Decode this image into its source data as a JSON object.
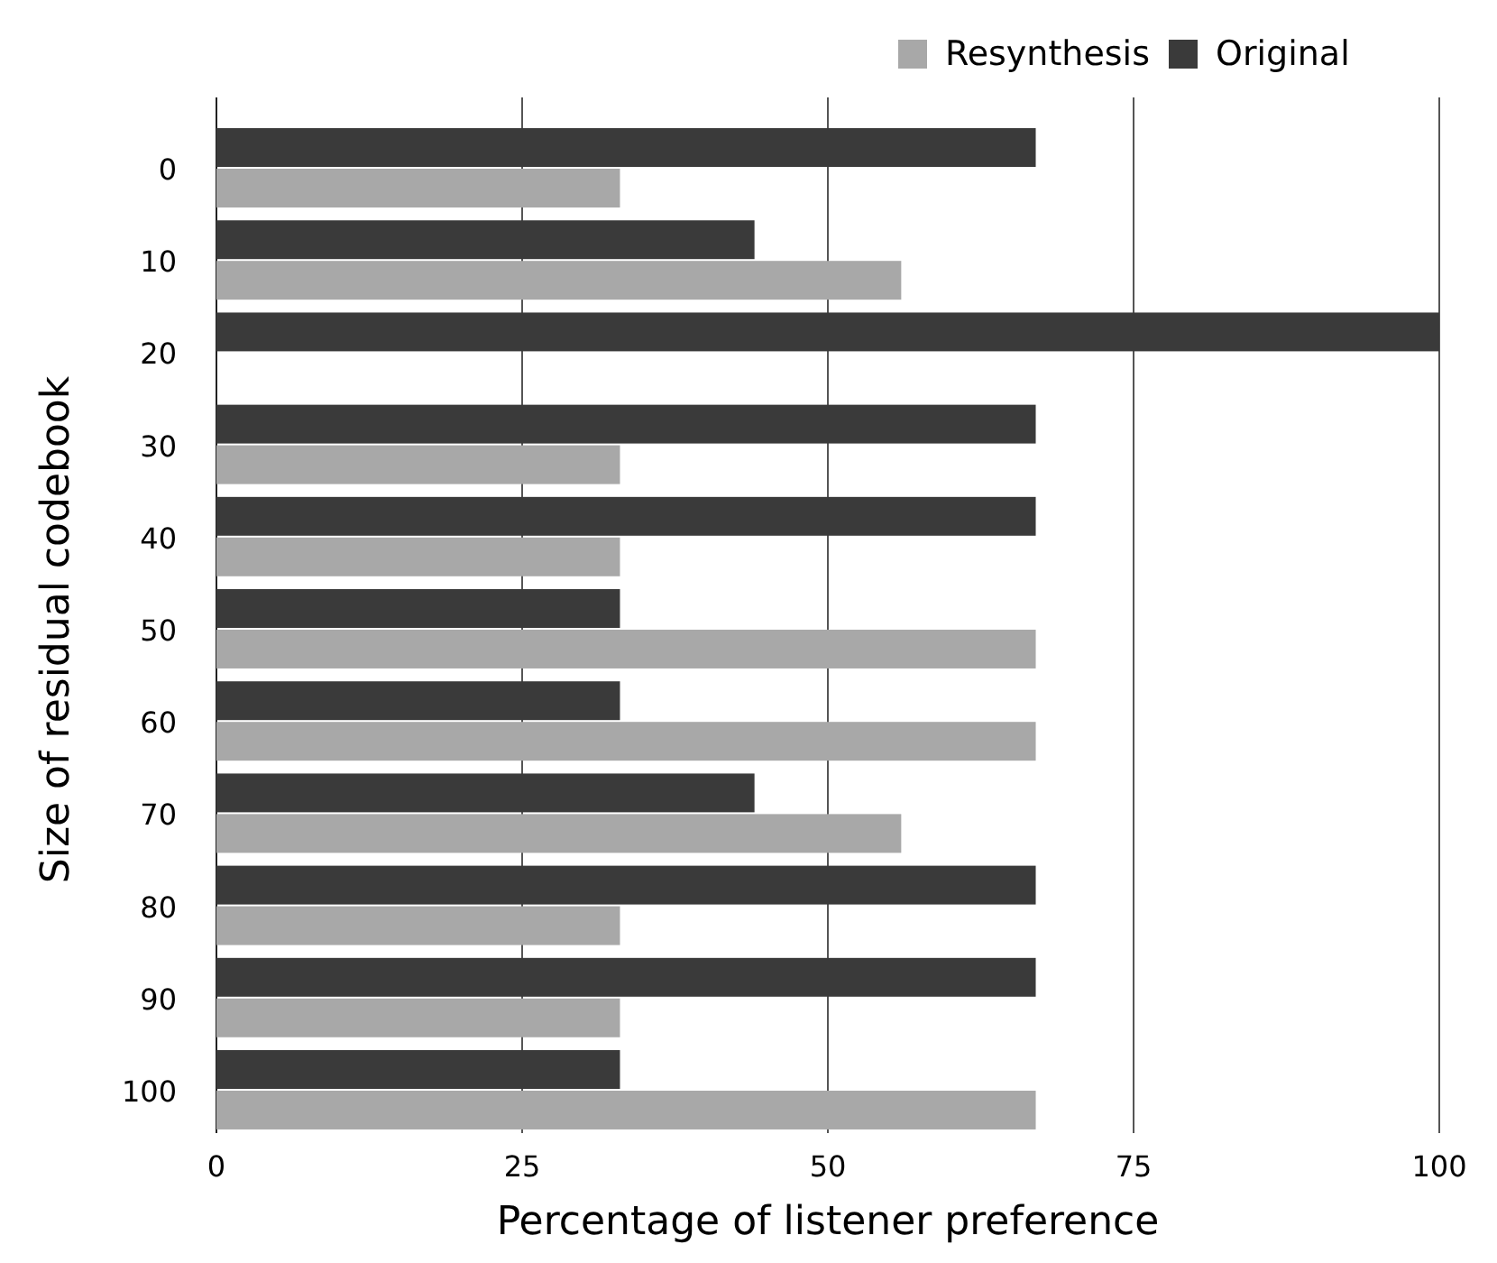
{
  "chart_data": {
    "type": "bar",
    "orientation": "horizontal",
    "xlabel": "Percentage of listener preference",
    "ylabel": "Size of residual codebook",
    "categories": [
      "0",
      "10",
      "20",
      "30",
      "40",
      "50",
      "60",
      "70",
      "80",
      "90",
      "100"
    ],
    "series": [
      {
        "name": "Original",
        "color": "#3a3a3a",
        "values": [
          67,
          44,
          100,
          67,
          67,
          33,
          33,
          44,
          67,
          67,
          33
        ]
      },
      {
        "name": "Resynthesis",
        "color": "#a8a8a8",
        "values": [
          33,
          56,
          null,
          33,
          33,
          67,
          67,
          56,
          33,
          33,
          67
        ]
      }
    ],
    "xlim": [
      0,
      100
    ],
    "xticks": [
      0,
      25,
      50,
      75,
      100
    ],
    "grid": "x",
    "legend": "top right"
  }
}
